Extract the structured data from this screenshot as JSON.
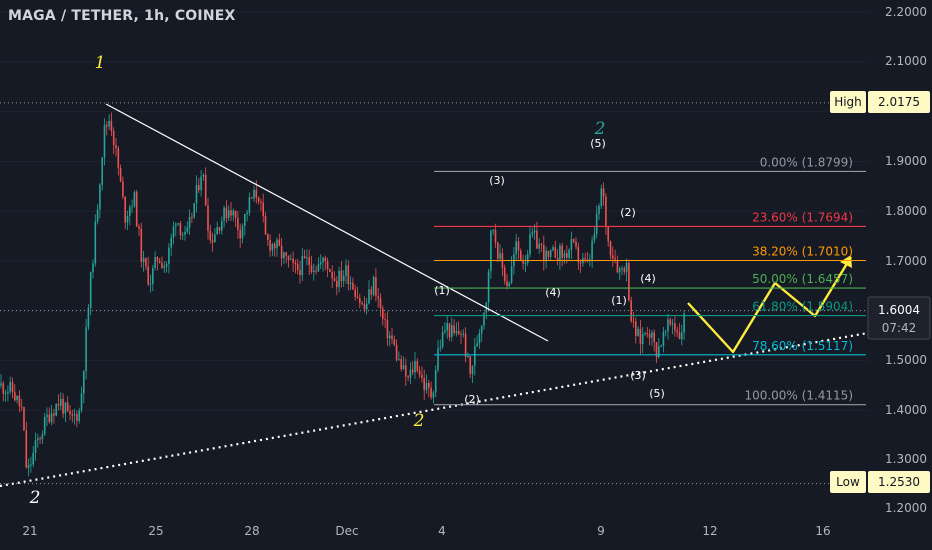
{
  "header": {
    "title": "MAGA / TETHER, 1h, COINEX"
  },
  "chart_data": {
    "type": "candlestick",
    "symbol": "MAGA / TETHER",
    "interval": "1h",
    "exchange": "COINEX",
    "y_range": [
      1.2,
      2.2
    ],
    "y_ticks": [
      "2.2000",
      "2.1000",
      "1.9000",
      "1.8000",
      "1.7000",
      "1.5000",
      "1.4000",
      "1.3000",
      "1.2000"
    ],
    "x_ticks": [
      "21",
      "25",
      "28",
      "Dec",
      "4",
      "9",
      "12",
      "16"
    ],
    "high": {
      "label": "High",
      "value": "2.0175"
    },
    "low": {
      "label": "Low",
      "value": "1.2530"
    },
    "last_price": {
      "value": "1.6004",
      "countdown": "07:42"
    },
    "fib_levels": [
      {
        "label": "0.00% (1.8799)",
        "value": 1.8799,
        "color": "#9598a1"
      },
      {
        "label": "23.60% (1.7694)",
        "value": 1.7694,
        "color": "#f23645"
      },
      {
        "label": "38.20% (1.7010)",
        "value": 1.701,
        "color": "#ff9800"
      },
      {
        "label": "50.00% (1.6457)",
        "value": 1.6457,
        "color": "#4caf50"
      },
      {
        "label": "61.80% (1.5904)",
        "value": 1.5904,
        "color": "#089981"
      },
      {
        "label": "78.60% (1.5117)",
        "value": 1.5117,
        "color": "#00bcd4"
      },
      {
        "label": "100.00% (1.4115)",
        "value": 1.4115,
        "color": "#9598a1"
      }
    ],
    "wave_labels": [
      {
        "text": "1",
        "color": "#ffeb3b",
        "style": "big"
      },
      {
        "text": "2",
        "color": "#26a69a",
        "style": "big"
      },
      {
        "text": "2",
        "color": "#ffeb3b",
        "style": "big"
      },
      {
        "text": "2",
        "color": "#ffffff",
        "style": "big"
      },
      {
        "text": "(5)",
        "color": "#ffffff",
        "style": "small"
      },
      {
        "text": "(3)",
        "color": "#ffffff",
        "style": "small"
      },
      {
        "text": "(2)",
        "color": "#ffffff",
        "style": "small"
      },
      {
        "text": "(4)",
        "color": "#ffffff",
        "style": "small"
      },
      {
        "text": "(1)",
        "color": "#ffffff",
        "style": "small"
      },
      {
        "text": "(4)",
        "color": "#ffffff",
        "style": "small"
      },
      {
        "text": "(1)",
        "color": "#ffffff",
        "style": "small"
      },
      {
        "text": "(2)",
        "color": "#ffffff",
        "style": "small"
      },
      {
        "text": "(3)",
        "color": "#ffffff",
        "style": "small"
      },
      {
        "text": "(5)",
        "color": "#ffffff",
        "style": "small"
      }
    ],
    "colors": {
      "up": "#26a69a",
      "down": "#ef5350",
      "projection": "#ffeb3b",
      "trendline": "#ffffff"
    }
  }
}
